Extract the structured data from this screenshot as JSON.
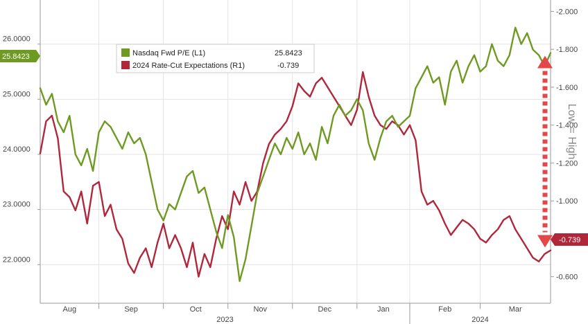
{
  "chart_data": {
    "type": "line",
    "legend": {
      "placement": "top-left",
      "entries": [
        {
          "label": "Nasdaq Fwd P/E (L1)",
          "value": "25.8423",
          "color": "#6e9a22"
        },
        {
          "label": "2024 Rate-Cut Expectations (R1)",
          "value": "-0.739",
          "color": "#b0273b"
        }
      ]
    },
    "x": {
      "months": [
        "Aug",
        "Sep",
        "Oct",
        "Nov",
        "Dec",
        "Jan",
        "Feb",
        "Mar"
      ],
      "years": [
        "2023",
        "2024"
      ],
      "range": [
        0,
        174
      ]
    },
    "y_left": {
      "ticks": [
        "22.0000",
        "23.0000",
        "24.0000",
        "25.0000",
        "26.0000"
      ],
      "range": [
        21.3,
        26.8
      ],
      "last_label": "25.8423"
    },
    "y_right": {
      "ticks": [
        "-0.600",
        "-0.800",
        "-1.000",
        "-1.200",
        "-1.400",
        "-1.600",
        "-1.800",
        "-2.000"
      ],
      "range": [
        -0.46,
        -2.06
      ],
      "inverted": true,
      "last_label": "-0.739"
    },
    "annotation": "Low = High",
    "grid": true,
    "series": [
      {
        "name": "Nasdaq Fwd P/E (L1)",
        "axis": "left",
        "color": "#6e9a22",
        "x": [
          0,
          2,
          4,
          6,
          8,
          10,
          12,
          14,
          16,
          18,
          20,
          22,
          24,
          26,
          28,
          30,
          32,
          34,
          36,
          38,
          40,
          42,
          44,
          46,
          48,
          50,
          52,
          54,
          56,
          58,
          60,
          62,
          64,
          66,
          68,
          70,
          72,
          74,
          76,
          78,
          80,
          82,
          84,
          86,
          88,
          90,
          92,
          94,
          96,
          98,
          100,
          102,
          104,
          106,
          108,
          110,
          112,
          114,
          116,
          118,
          120,
          122,
          124,
          126,
          128,
          130,
          132,
          134,
          136,
          138,
          140,
          142,
          144,
          146,
          148,
          150,
          152,
          154,
          156,
          158,
          160,
          162,
          164,
          166,
          168,
          170,
          172,
          174
        ],
        "values": [
          25.2,
          24.9,
          25.1,
          24.6,
          24.4,
          24.7,
          24.0,
          23.8,
          24.1,
          23.7,
          24.4,
          24.6,
          24.5,
          24.3,
          24.1,
          24.4,
          24.2,
          24.3,
          24.0,
          23.5,
          23.0,
          22.8,
          23.1,
          23.0,
          23.3,
          23.6,
          23.7,
          23.3,
          23.4,
          23.0,
          22.6,
          22.3,
          22.9,
          22.5,
          21.7,
          22.1,
          22.7,
          23.3,
          23.6,
          23.9,
          24.2,
          24.0,
          24.3,
          24.1,
          24.4,
          24.0,
          24.2,
          23.9,
          24.5,
          24.2,
          24.7,
          24.9,
          24.7,
          24.8,
          25.0,
          24.8,
          24.2,
          23.9,
          24.3,
          24.6,
          24.7,
          24.5,
          24.6,
          24.7,
          25.2,
          25.4,
          25.6,
          25.3,
          25.4,
          24.9,
          25.5,
          25.7,
          25.3,
          25.6,
          25.8,
          25.5,
          25.6,
          26.0,
          25.7,
          25.6,
          25.8,
          26.3,
          26.0,
          26.2,
          25.9,
          25.8,
          25.6,
          25.84
        ]
      },
      {
        "name": "2024 Rate-Cut Expectations (R1)",
        "axis": "right",
        "color": "#b0273b",
        "x": [
          0,
          2,
          4,
          6,
          8,
          10,
          12,
          14,
          16,
          18,
          20,
          22,
          24,
          26,
          28,
          30,
          32,
          34,
          36,
          38,
          40,
          42,
          44,
          46,
          48,
          50,
          52,
          54,
          56,
          58,
          60,
          62,
          64,
          66,
          68,
          70,
          72,
          74,
          76,
          78,
          80,
          82,
          84,
          86,
          88,
          90,
          92,
          94,
          96,
          98,
          100,
          102,
          104,
          106,
          108,
          110,
          112,
          114,
          116,
          118,
          120,
          122,
          124,
          126,
          128,
          130,
          132,
          134,
          136,
          138,
          140,
          142,
          144,
          146,
          148,
          150,
          152,
          154,
          156,
          158,
          160,
          162,
          164,
          166,
          168,
          170,
          172,
          174
        ],
        "values": [
          -1.25,
          -1.42,
          -1.45,
          -1.33,
          -1.05,
          -1.02,
          -0.95,
          -1.05,
          -0.88,
          -1.08,
          -1.1,
          -0.92,
          -0.98,
          -0.85,
          -0.8,
          -0.67,
          -0.62,
          -0.7,
          -0.75,
          -0.65,
          -0.78,
          -0.88,
          -0.75,
          -0.82,
          -0.75,
          -0.65,
          -0.78,
          -0.6,
          -0.72,
          -0.65,
          -0.8,
          -0.92,
          -0.85,
          -1.05,
          -0.98,
          -1.1,
          -1.0,
          -1.05,
          -1.2,
          -1.3,
          -1.35,
          -1.38,
          -1.42,
          -1.5,
          -1.62,
          -1.58,
          -1.55,
          -1.62,
          -1.65,
          -1.6,
          -1.55,
          -1.5,
          -1.45,
          -1.4,
          -1.48,
          -1.68,
          -1.55,
          -1.45,
          -1.4,
          -1.38,
          -1.42,
          -1.4,
          -1.35,
          -1.4,
          -1.32,
          -1.05,
          -0.98,
          -1.0,
          -0.95,
          -0.88,
          -0.82,
          -0.86,
          -0.9,
          -0.88,
          -0.85,
          -0.8,
          -0.78,
          -0.82,
          -0.85,
          -0.9,
          -0.92,
          -0.85,
          -0.8,
          -0.75,
          -0.7,
          -0.68,
          -0.72,
          -0.739
        ]
      }
    ]
  }
}
